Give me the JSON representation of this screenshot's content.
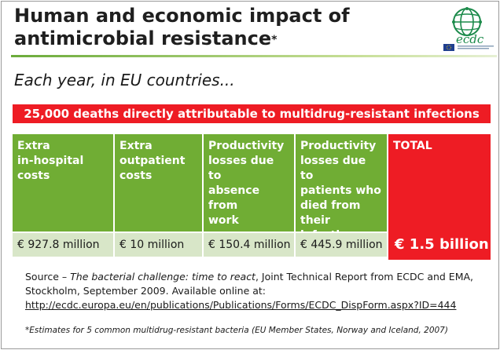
{
  "title": {
    "line1": "Human and economic impact of",
    "line2": "antimicrobial resistance",
    "marker": "*"
  },
  "logo": {
    "text": "ecdc",
    "brand_color": "#1b8a4a",
    "flag_color": "#1f3f8f"
  },
  "subtitle": "Each year, in EU countries...",
  "banner": "25,000 deaths directly attributable to multidrug-resistant infections",
  "table": {
    "columns": [
      {
        "header_lines": [
          "Extra",
          "in-hospital",
          "costs"
        ],
        "value": "€ 927.8 million"
      },
      {
        "header_lines": [
          "Extra",
          "outpatient",
          "costs"
        ],
        "value": "€ 10 million"
      },
      {
        "header_lines": [
          "Productivity",
          "losses due to",
          "absence",
          "from",
          "work"
        ],
        "value": "€ 150.4 million"
      },
      {
        "header_lines": [
          "Productivity",
          "losses due to",
          "patients who",
          "died from",
          "their",
          "infection"
        ],
        "value": "€ 445.9 million"
      }
    ],
    "total": {
      "header": "TOTAL",
      "value": "€ 1.5 billion"
    }
  },
  "source": {
    "prefix": "Source – ",
    "title_italic": "The bacterial challenge: time to react",
    "rest": ", Joint Technical Report from ECDC and EMA, Stockholm, September 2009. Available online at:",
    "url": "http://ecdc.europa.eu/en/publications/Publications/Forms/ECDC_DispForm.aspx?ID=444"
  },
  "footnote": "*Estimates for 5 common multidrug-resistant bacteria (EU Member States, Norway and Iceland, 2007)",
  "colors": {
    "green": "#70ad34",
    "light_green": "#d8e6c8",
    "red": "#ee1c24"
  }
}
